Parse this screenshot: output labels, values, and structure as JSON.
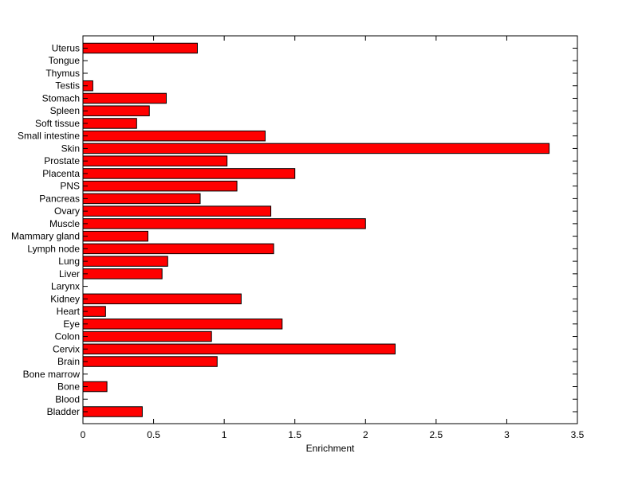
{
  "chart_data": {
    "type": "bar",
    "orientation": "horizontal",
    "title": "",
    "xlabel": "Enrichment",
    "ylabel": "",
    "xlim": [
      0,
      3.5
    ],
    "xticks": [
      "0",
      "0.5",
      "1",
      "1.5",
      "2",
      "2.5",
      "3",
      "3.5"
    ],
    "grid": false,
    "legend": "none",
    "bar_color": "#ff0000",
    "edge_color": "#000000",
    "categories": [
      "Bladder",
      "Blood",
      "Bone",
      "Bone marrow",
      "Brain",
      "Cervix",
      "Colon",
      "Eye",
      "Heart",
      "Kidney",
      "Larynx",
      "Liver",
      "Lung",
      "Lymph node",
      "Mammary gland",
      "Muscle",
      "Ovary",
      "Pancreas",
      "PNS",
      "Placenta",
      "Prostate",
      "Skin",
      "Small intestine",
      "Soft tissue",
      "Spleen",
      "Stomach",
      "Testis",
      "Thymus",
      "Tongue",
      "Uterus"
    ],
    "values": [
      0.42,
      0,
      0.17,
      0,
      0.95,
      2.21,
      0.91,
      1.41,
      0.16,
      1.12,
      0,
      0.56,
      0.6,
      1.35,
      0.46,
      2.0,
      1.33,
      0.83,
      1.09,
      1.5,
      1.02,
      3.3,
      1.29,
      0.38,
      0.47,
      0.59,
      0.07,
      0,
      0,
      0.81
    ]
  }
}
